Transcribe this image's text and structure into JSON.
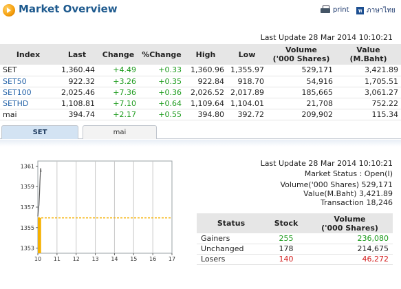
{
  "header": {
    "title": "Market Overview",
    "print_label": "print",
    "lang_label": "ภาษาไทย",
    "lang_icon_glyph": "ท",
    "logo_icon": "market-logo-icon",
    "print_icon": "printer-icon",
    "lang_icon": "thai-language-icon"
  },
  "last_update": "Last Update 28 Mar 2014 10:10:21",
  "index_table": {
    "headers": {
      "index": "Index",
      "last": "Last",
      "change": "Change",
      "pct_change": "%Change",
      "high": "High",
      "low": "Low",
      "volume_1": "Volume",
      "volume_2": "('000 Shares)",
      "value_1": "Value",
      "value_2": "(M.Baht)"
    },
    "rows": [
      {
        "name": "SET",
        "last": "1,360.44",
        "change": "+4.49",
        "pct": "+0.33",
        "high": "1,360.96",
        "low": "1,355.97",
        "volume": "529,171",
        "value": "3,421.89",
        "link": false
      },
      {
        "name": "SET50",
        "last": "922.32",
        "change": "+3.26",
        "pct": "+0.35",
        "high": "922.84",
        "low": "918.70",
        "volume": "54,916",
        "value": "1,705.51",
        "link": true
      },
      {
        "name": "SET100",
        "last": "2,025.46",
        "change": "+7.36",
        "pct": "+0.36",
        "high": "2,026.52",
        "low": "2,017.89",
        "volume": "185,665",
        "value": "3,061.27",
        "link": true
      },
      {
        "name": "SETHD",
        "last": "1,108.81",
        "change": "+7.10",
        "pct": "+0.64",
        "high": "1,109.64",
        "low": "1,104.01",
        "volume": "21,708",
        "value": "752.22",
        "link": true
      },
      {
        "name": "mai",
        "last": "394.74",
        "change": "+2.17",
        "pct": "+0.55",
        "high": "394.80",
        "low": "392.72",
        "volume": "209,902",
        "value": "115.34",
        "link": false
      }
    ]
  },
  "tabs": [
    {
      "label": "SET",
      "active": true
    },
    {
      "label": "mai",
      "active": false
    }
  ],
  "colors": {
    "up": "#1a9a1a",
    "down": "#d42020",
    "link": "#2563a8",
    "title": "#1e5a8e",
    "area": "#f5b000",
    "reference_line": "#f5b000"
  },
  "chart_data": {
    "type": "line",
    "title": "",
    "xlabel": "",
    "ylabel": "",
    "x_ticks": [
      10,
      11,
      12,
      13,
      14,
      15,
      16,
      17
    ],
    "y_ticks": [
      1353,
      1355,
      1357,
      1359,
      1361
    ],
    "xlim": [
      10,
      17
    ],
    "ylim": [
      1352.5,
      1361.5
    ],
    "grid": true,
    "reference_value": 1355.95,
    "series": [
      {
        "x": [
          10.0,
          10.03,
          10.06,
          10.09,
          10.11,
          10.13,
          10.15,
          10.17
        ],
        "y": [
          1356.1,
          1356.8,
          1357.2,
          1358.4,
          1359.5,
          1360.3,
          1360.8,
          1360.44
        ]
      }
    ],
    "area_under_reference": {
      "x_start": 10.0,
      "x_end": 10.17,
      "y_bottom": 1352.5
    }
  },
  "market_info": {
    "last_update": "Last Update 28 Mar 2014 10:10:21",
    "status": "Market Status : Open(I)",
    "volume": "Volume('000 Shares) 529,171",
    "value": "Value(M.Baht) 3,421.89",
    "transaction": "Transaction 18,246"
  },
  "status_table": {
    "headers": {
      "status": "Status",
      "stock": "Stock",
      "volume_1": "Volume",
      "volume_2": "('000 Shares)"
    },
    "rows": [
      {
        "status": "Gainers",
        "stock": "255",
        "volume": "236,080",
        "tone": "g"
      },
      {
        "status": "Unchanged",
        "stock": "178",
        "volume": "214,675",
        "tone": ""
      },
      {
        "status": "Losers",
        "stock": "140",
        "volume": "46,272",
        "tone": "r"
      }
    ]
  }
}
